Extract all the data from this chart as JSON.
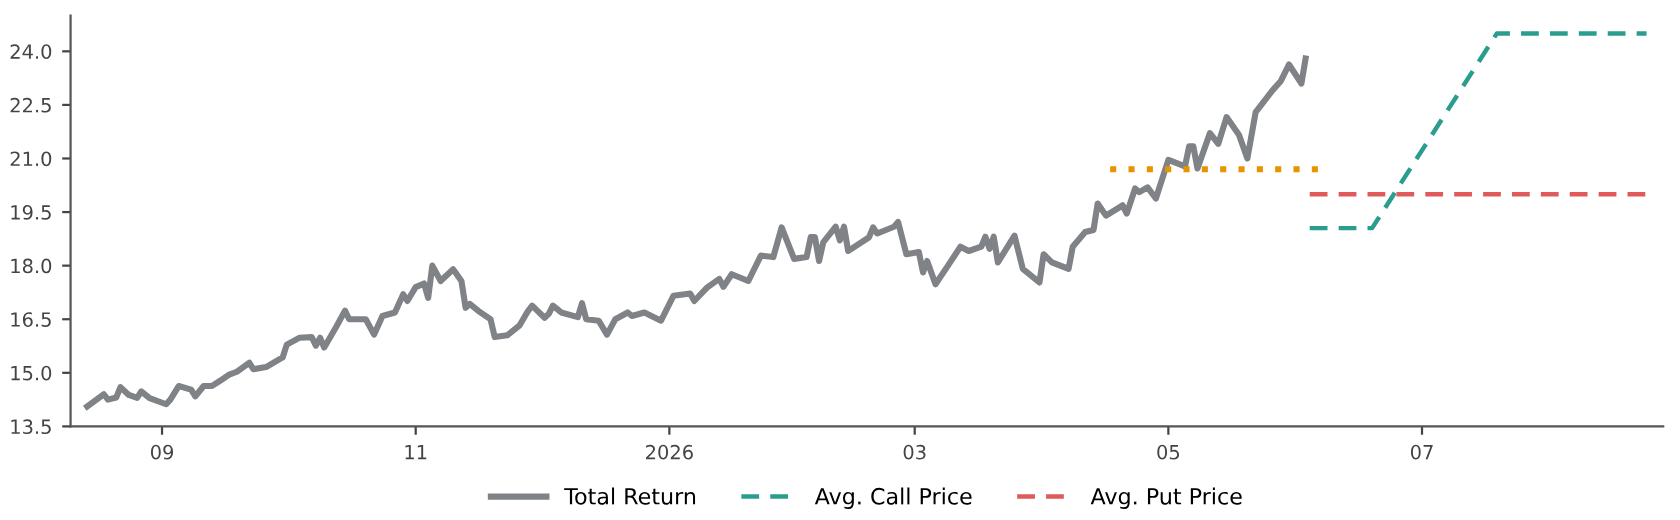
{
  "chart_data": {
    "type": "line",
    "xlim": [
      "2025-08-10",
      "2026-08-28"
    ],
    "xticks": [
      {
        "value": "2025-09-01",
        "label": "09"
      },
      {
        "value": "2025-11-01",
        "label": "11"
      },
      {
        "value": "2026-01-01",
        "label": "2026"
      },
      {
        "value": "2026-03-01",
        "label": "03"
      },
      {
        "value": "2026-05-01",
        "label": "05"
      },
      {
        "value": "2026-07-01",
        "label": "07"
      }
    ],
    "ylim": [
      13.5,
      25
    ],
    "yticks": [
      {
        "value": 13.5,
        "label": "13.5"
      },
      {
        "value": 15,
        "label": "15.0"
      },
      {
        "value": 16.5,
        "label": "16.5"
      },
      {
        "value": 18,
        "label": "18.0"
      },
      {
        "value": 19.5,
        "label": "19.5"
      },
      {
        "value": 21,
        "label": "21.0"
      },
      {
        "value": 22.5,
        "label": "22.5"
      },
      {
        "value": 24,
        "label": "24.0"
      }
    ],
    "grid": false,
    "legend": "bottom",
    "series": [
      {
        "name": "Total Return",
        "color": "#7f8286",
        "line_style": "solid",
        "x": [
          "2025-08-14",
          "2025-08-18",
          "2025-08-19",
          "2025-08-21",
          "2025-08-22",
          "2025-08-24",
          "2025-08-26",
          "2025-08-27",
          "2025-08-29",
          "2025-09-02",
          "2025-09-03",
          "2025-09-05",
          "2025-09-08",
          "2025-09-09",
          "2025-09-11",
          "2025-09-13",
          "2025-09-15",
          "2025-09-17",
          "2025-09-19",
          "2025-09-22",
          "2025-09-23",
          "2025-09-26",
          "2025-09-30",
          "2025-10-01",
          "2025-10-04",
          "2025-10-07",
          "2025-10-08",
          "2025-10-09",
          "2025-10-10",
          "2025-10-13",
          "2025-10-15",
          "2025-10-16",
          "2025-10-20",
          "2025-10-22",
          "2025-10-24",
          "2025-10-27",
          "2025-10-29",
          "2025-10-30",
          "2025-11-01",
          "2025-11-03",
          "2025-11-04",
          "2025-11-05",
          "2025-11-07",
          "2025-11-10",
          "2025-11-12",
          "2025-11-13",
          "2025-11-14",
          "2025-11-16",
          "2025-11-19",
          "2025-11-20",
          "2025-11-23",
          "2025-11-26",
          "2025-11-28",
          "2025-11-29",
          "2025-12-02",
          "2025-12-03",
          "2025-12-04",
          "2025-12-06",
          "2025-12-10",
          "2025-12-11",
          "2025-12-12",
          "2025-12-15",
          "2025-12-17",
          "2025-12-19",
          "2025-12-22",
          "2025-12-23",
          "2025-12-26",
          "2025-12-30",
          "2026-01-02",
          "2026-01-06",
          "2026-01-07",
          "2026-01-10",
          "2026-01-13",
          "2026-01-14",
          "2026-01-16",
          "2026-01-20",
          "2026-01-23",
          "2026-01-26",
          "2026-01-28",
          "2026-01-31",
          "2026-02-03",
          "2026-02-04",
          "2026-02-05",
          "2026-02-06",
          "2026-02-07",
          "2026-02-10",
          "2026-02-11",
          "2026-02-12",
          "2026-02-13",
          "2026-02-18",
          "2026-02-19",
          "2026-02-20",
          "2026-02-24",
          "2026-02-25",
          "2026-02-27",
          "2026-03-02",
          "2026-03-03",
          "2026-03-04",
          "2026-03-06",
          "2026-03-09",
          "2026-03-12",
          "2026-03-14",
          "2026-03-17",
          "2026-03-18",
          "2026-03-19",
          "2026-03-20",
          "2026-03-21",
          "2026-03-25",
          "2026-03-27",
          "2026-03-31",
          "2026-04-01",
          "2026-04-03",
          "2026-04-07",
          "2026-04-08",
          "2026-04-11",
          "2026-04-13",
          "2026-04-14",
          "2026-04-16",
          "2026-04-20",
          "2026-04-21",
          "2026-04-23",
          "2026-04-24",
          "2026-04-26",
          "2026-04-28",
          "2026-05-01",
          "2026-05-05",
          "2026-05-06",
          "2026-05-07",
          "2026-05-08",
          "2026-05-11",
          "2026-05-13",
          "2026-05-15",
          "2026-05-18",
          "2026-05-20",
          "2026-05-22",
          "2026-05-26",
          "2026-05-28",
          "2026-05-30",
          "2026-06-02",
          "2026-06-03"
        ],
        "values": [
          14.06,
          14.4,
          14.25,
          14.31,
          14.6,
          14.38,
          14.3,
          14.48,
          14.29,
          14.12,
          14.25,
          14.63,
          14.53,
          14.34,
          14.63,
          14.63,
          14.78,
          14.94,
          15.03,
          15.28,
          15.1,
          15.16,
          15.43,
          15.79,
          15.98,
          16.0,
          15.76,
          15.98,
          15.71,
          16.31,
          16.74,
          16.5,
          16.5,
          16.07,
          16.59,
          16.69,
          17.2,
          17.01,
          17.4,
          17.5,
          17.1,
          18.0,
          17.57,
          17.9,
          17.57,
          16.82,
          16.93,
          16.74,
          16.5,
          16.0,
          16.05,
          16.33,
          16.73,
          16.88,
          16.54,
          16.65,
          16.88,
          16.69,
          16.56,
          16.95,
          16.5,
          16.46,
          16.07,
          16.5,
          16.69,
          16.59,
          16.69,
          16.46,
          17.16,
          17.22,
          17.01,
          17.38,
          17.63,
          17.41,
          17.76,
          17.57,
          18.28,
          18.24,
          19.07,
          18.19,
          18.24,
          18.8,
          18.8,
          18.13,
          18.65,
          19.09,
          18.71,
          19.09,
          18.41,
          18.79,
          19.07,
          18.9,
          19.09,
          19.22,
          18.32,
          18.38,
          17.81,
          18.13,
          17.48,
          18.0,
          18.53,
          18.41,
          18.53,
          18.81,
          18.47,
          18.81,
          18.09,
          18.84,
          17.91,
          17.53,
          18.32,
          18.09,
          17.91,
          18.53,
          18.94,
          19.0,
          19.74,
          19.4,
          19.69,
          19.46,
          20.16,
          20.06,
          20.19,
          19.88,
          20.96,
          20.78,
          21.34,
          21.34,
          20.72,
          21.71,
          21.41,
          22.16,
          21.66,
          21.0,
          22.3,
          22.9,
          23.16,
          23.63,
          23.1,
          23.8
        ]
      },
      {
        "color": "#e69500",
        "line_style": "dotted",
        "x": [
          "2026-04-17",
          "2026-06-07"
        ],
        "values": [
          20.7,
          20.7
        ]
      },
      {
        "name": "Avg. Call Price",
        "color": "#2a9d8f",
        "line_style": "dashed",
        "x": [
          "2026-06-04",
          "2026-06-19",
          "2026-07-19",
          "2026-08-24"
        ],
        "values": [
          19.05,
          19.05,
          24.5,
          24.5
        ]
      },
      {
        "name": "Avg. Put Price",
        "color": "#e05a5a",
        "line_style": "dashed",
        "x": [
          "2026-06-04",
          "2026-08-24"
        ],
        "values": [
          20.0,
          20.0
        ]
      }
    ]
  }
}
